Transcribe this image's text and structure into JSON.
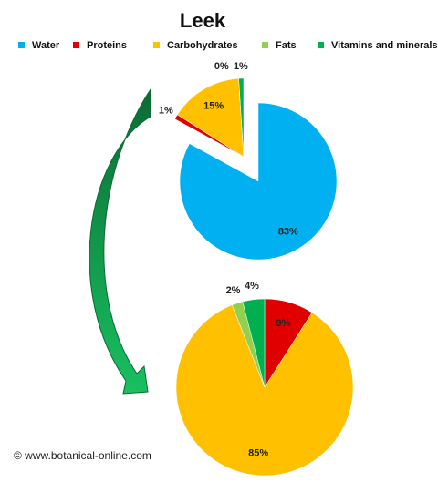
{
  "title": "Leek",
  "credit": "© www.botanical-online.com",
  "chart_data": [
    {
      "type": "pie",
      "categories": [
        "Water",
        "Proteins",
        "Carbohydrates",
        "Fats",
        "Vitamins and minerals"
      ],
      "values": [
        83,
        1,
        15,
        0,
        1
      ],
      "value_labels": [
        "83%",
        "1%",
        "15%",
        "0%",
        "1%"
      ],
      "colors": [
        "#00b0f0",
        "#e00000",
        "#ffc000",
        "#92d050",
        "#00b050"
      ],
      "exploded": [
        false,
        true,
        true,
        true,
        true
      ]
    },
    {
      "type": "pie",
      "categories": [
        "Proteins",
        "Carbohydrates",
        "Fats",
        "Vitamins and minerals"
      ],
      "values": [
        9,
        85,
        2,
        4
      ],
      "value_labels": [
        "9%",
        "85%",
        "2%",
        "4%"
      ],
      "colors": [
        "#e00000",
        "#ffc000",
        "#92d050",
        "#00b050"
      ],
      "exploded": [
        false,
        false,
        false,
        false
      ]
    }
  ]
}
